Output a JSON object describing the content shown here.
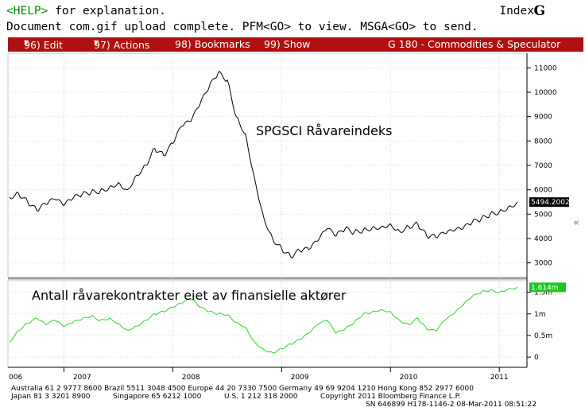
{
  "header": {
    "help_key": "<HELP>",
    "help_text": " for explanation.",
    "status_message": "Document com.gif upload complete. PFM<GO> to view. MSGA<GO> to send.",
    "index_label": "Index",
    "index_glyph": "G"
  },
  "menu": {
    "edit": "96) Edit",
    "actions": "97) Actions",
    "bookmarks": "98) Bookmarks",
    "show": "99) Show",
    "title": "G 180 - Commodities & Speculator"
  },
  "colors": {
    "menu_bar": "#b01010",
    "upper_series": "#000000",
    "lower_series": "#2ed22e",
    "last_value_tag": "#000000",
    "lower_last_value_tag": "#1fc61f"
  },
  "chart_data": [
    {
      "type": "line",
      "title": "SPGSCI Råvareindeks",
      "x_range": [
        "2006-07",
        "2011-03"
      ],
      "ylim": [
        2500,
        11500
      ],
      "yticks": [
        3000,
        4000,
        5000,
        6000,
        7000,
        8000,
        9000,
        10000,
        11000
      ],
      "ytick_labels": [
        "3000",
        "4000",
        "5000",
        "6000",
        "7000",
        "8000",
        "9000",
        "10000",
        "11000"
      ],
      "last_value": "5494.2002",
      "series": [
        {
          "values": [
            [
              "2006-07",
              5700
            ],
            [
              "2006-08",
              5850
            ],
            [
              "2006-09",
              5500
            ],
            [
              "2006-10",
              5150
            ],
            [
              "2006-11",
              5400
            ],
            [
              "2006-12",
              5600
            ],
            [
              "2007-01",
              5350
            ],
            [
              "2007-02",
              5650
            ],
            [
              "2007-03",
              5800
            ],
            [
              "2007-04",
              5900
            ],
            [
              "2007-05",
              5950
            ],
            [
              "2007-06",
              6100
            ],
            [
              "2007-07",
              6300
            ],
            [
              "2007-08",
              6000
            ],
            [
              "2007-09",
              6600
            ],
            [
              "2007-10",
              7000
            ],
            [
              "2007-11",
              7700
            ],
            [
              "2007-12",
              7400
            ],
            [
              "2008-01",
              7900
            ],
            [
              "2008-02",
              8600
            ],
            [
              "2008-03",
              8800
            ],
            [
              "2008-04",
              9500
            ],
            [
              "2008-05",
              10200
            ],
            [
              "2008-06",
              10800
            ],
            [
              "2008-07",
              10500
            ],
            [
              "2008-08",
              9000
            ],
            [
              "2008-09",
              8300
            ],
            [
              "2008-10",
              6500
            ],
            [
              "2008-11",
              4900
            ],
            [
              "2008-12",
              4000
            ],
            [
              "2009-01",
              3600
            ],
            [
              "2009-02",
              3250
            ],
            [
              "2009-03",
              3500
            ],
            [
              "2009-04",
              3550
            ],
            [
              "2009-05",
              3900
            ],
            [
              "2009-06",
              4400
            ],
            [
              "2009-07",
              4100
            ],
            [
              "2009-08",
              4400
            ],
            [
              "2009-09",
              4250
            ],
            [
              "2009-10",
              4350
            ],
            [
              "2009-11",
              4450
            ],
            [
              "2009-12",
              4500
            ],
            [
              "2010-01",
              4600
            ],
            [
              "2010-02",
              4300
            ],
            [
              "2010-03",
              4500
            ],
            [
              "2010-04",
              4600
            ],
            [
              "2010-05",
              4100
            ],
            [
              "2010-06",
              4050
            ],
            [
              "2010-07",
              4200
            ],
            [
              "2010-08",
              4300
            ],
            [
              "2010-09",
              4400
            ],
            [
              "2010-10",
              4650
            ],
            [
              "2010-11",
              4800
            ],
            [
              "2010-12",
              5000
            ],
            [
              "2011-01",
              5100
            ],
            [
              "2011-02",
              5300
            ],
            [
              "2011-03",
              5494
            ]
          ]
        }
      ]
    },
    {
      "type": "line",
      "title": "Antall råvarekontrakter eiet av finansielle aktører",
      "x_range": [
        "2006-07",
        "2011-03"
      ],
      "ylim": [
        -0.2,
        1.75
      ],
      "yticks": [
        0,
        0.5,
        1.0,
        1.5
      ],
      "ytick_labels": [
        "0",
        "0.5m",
        "1m",
        "1.5m"
      ],
      "last_value": "1.614m",
      "series": [
        {
          "values": [
            [
              "2006-07",
              0.35
            ],
            [
              "2006-08",
              0.62
            ],
            [
              "2006-09",
              0.78
            ],
            [
              "2006-10",
              0.9
            ],
            [
              "2006-11",
              0.75
            ],
            [
              "2006-12",
              0.85
            ],
            [
              "2007-01",
              0.7
            ],
            [
              "2007-02",
              0.8
            ],
            [
              "2007-03",
              0.88
            ],
            [
              "2007-04",
              0.95
            ],
            [
              "2007-05",
              0.85
            ],
            [
              "2007-06",
              0.9
            ],
            [
              "2007-07",
              0.78
            ],
            [
              "2007-08",
              0.62
            ],
            [
              "2007-09",
              0.72
            ],
            [
              "2007-10",
              0.85
            ],
            [
              "2007-11",
              1.0
            ],
            [
              "2007-12",
              1.05
            ],
            [
              "2008-01",
              1.15
            ],
            [
              "2008-02",
              1.25
            ],
            [
              "2008-03",
              1.35
            ],
            [
              "2008-04",
              1.15
            ],
            [
              "2008-05",
              1.05
            ],
            [
              "2008-06",
              1.0
            ],
            [
              "2008-07",
              0.98
            ],
            [
              "2008-08",
              0.8
            ],
            [
              "2008-09",
              0.7
            ],
            [
              "2008-10",
              0.35
            ],
            [
              "2008-11",
              0.18
            ],
            [
              "2008-12",
              0.1
            ],
            [
              "2009-01",
              0.2
            ],
            [
              "2009-02",
              0.3
            ],
            [
              "2009-03",
              0.4
            ],
            [
              "2009-04",
              0.55
            ],
            [
              "2009-05",
              0.75
            ],
            [
              "2009-06",
              0.85
            ],
            [
              "2009-07",
              0.55
            ],
            [
              "2009-08",
              0.65
            ],
            [
              "2009-09",
              0.8
            ],
            [
              "2009-10",
              1.0
            ],
            [
              "2009-11",
              1.05
            ],
            [
              "2009-12",
              1.1
            ],
            [
              "2010-01",
              1.05
            ],
            [
              "2010-02",
              0.85
            ],
            [
              "2010-03",
              0.75
            ],
            [
              "2010-04",
              0.9
            ],
            [
              "2010-05",
              0.65
            ],
            [
              "2010-06",
              0.6
            ],
            [
              "2010-07",
              0.85
            ],
            [
              "2010-08",
              1.0
            ],
            [
              "2010-09",
              1.2
            ],
            [
              "2010-10",
              1.4
            ],
            [
              "2010-11",
              1.5
            ],
            [
              "2010-12",
              1.55
            ],
            [
              "2011-01",
              1.5
            ],
            [
              "2011-02",
              1.58
            ],
            [
              "2011-03",
              1.614
            ]
          ]
        }
      ]
    }
  ],
  "xaxis": {
    "labels": [
      {
        "text": "006",
        "date": "2006-07"
      },
      {
        "text": "2007",
        "date": "2007-03"
      },
      {
        "text": "2008",
        "date": "2008-03"
      },
      {
        "text": "2009",
        "date": "2009-03"
      },
      {
        "text": "2010",
        "date": "2010-03"
      },
      {
        "text": "2011",
        "date": "2011-01"
      }
    ],
    "gridlines": [
      "2007-01",
      "2008-01",
      "2009-01",
      "2010-01",
      "2011-01"
    ]
  },
  "footer": {
    "line1": "Australia 61 2 9777 8600 Brazil 5511 3048 4500 Europe 44 20 7330 7500 Germany 49 69 9204 1210 Hong Kong 852 2977 6000",
    "line2": "Japan 81 3 3201 8900          Singapore 65 6212 1000          U.S. 1 212 318 2000          Copyright 2011 Bloomberg Finance L.P.",
    "line3": "SN 646899 H178-1146-2 08-Mar-2011 08:51:22"
  },
  "scroll_glyph": "«"
}
